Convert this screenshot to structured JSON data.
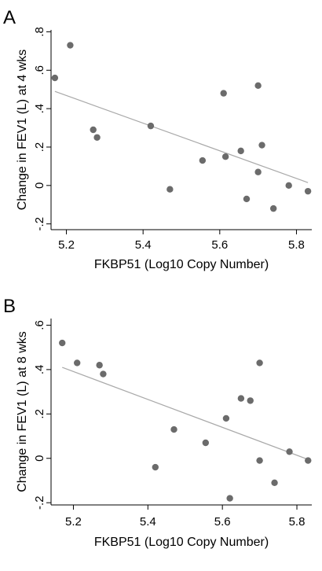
{
  "chart_data": [
    {
      "panel": "A",
      "type": "scatter",
      "xlabel": "FKBP51 (Log10 Copy Number)",
      "ylabel": "Change in FEV1 (L) at 4 wks",
      "xlim": [
        5.16,
        5.84
      ],
      "ylim": [
        -0.23,
        0.81
      ],
      "xticks": [
        5.2,
        5.4,
        5.6,
        5.8
      ],
      "xtick_labels": [
        "5.2",
        "5.4",
        "5.6",
        "5.8"
      ],
      "yticks": [
        -0.2,
        0,
        0.2,
        0.4,
        0.6,
        0.8
      ],
      "ytick_labels": [
        "-.2",
        "0",
        ".2",
        ".4",
        ".6",
        ".8"
      ],
      "x": [
        5.17,
        5.21,
        5.27,
        5.28,
        5.42,
        5.47,
        5.555,
        5.61,
        5.615,
        5.655,
        5.67,
        5.7,
        5.7,
        5.71,
        5.74,
        5.78,
        5.83
      ],
      "y": [
        0.56,
        0.73,
        0.29,
        0.25,
        0.31,
        -0.02,
        0.13,
        0.48,
        0.15,
        0.18,
        -0.07,
        0.52,
        0.07,
        0.21,
        -0.12,
        0.0,
        -0.03
      ],
      "fit": {
        "x": [
          5.17,
          5.83
        ],
        "y": [
          0.49,
          0.015
        ]
      },
      "grid": false
    },
    {
      "panel": "B",
      "type": "scatter",
      "xlabel": "FKBP51 (Log10 Copy Number)",
      "ylabel": "Change in FEV1 (L) at 8 wks",
      "xlim": [
        5.14,
        5.84
      ],
      "ylim": [
        -0.21,
        0.63
      ],
      "xticks": [
        5.2,
        5.4,
        5.6,
        5.8
      ],
      "xtick_labels": [
        "5.2",
        "5.4",
        "5.6",
        "5.8"
      ],
      "yticks": [
        -0.2,
        0,
        0.2,
        0.4,
        0.6
      ],
      "ytick_labels": [
        "-.2",
        "0",
        ".2",
        ".4",
        ".6"
      ],
      "x": [
        5.17,
        5.21,
        5.27,
        5.28,
        5.42,
        5.47,
        5.555,
        5.61,
        5.62,
        5.65,
        5.675,
        5.7,
        5.7,
        5.74,
        5.78,
        5.83
      ],
      "y": [
        0.52,
        0.43,
        0.42,
        0.38,
        -0.04,
        0.13,
        0.07,
        0.18,
        -0.18,
        0.27,
        0.26,
        0.43,
        -0.01,
        -0.11,
        0.03,
        -0.01
      ],
      "fit": {
        "x": [
          5.17,
          5.83
        ],
        "y": [
          0.41,
          -0.005
        ]
      },
      "grid": false
    }
  ]
}
